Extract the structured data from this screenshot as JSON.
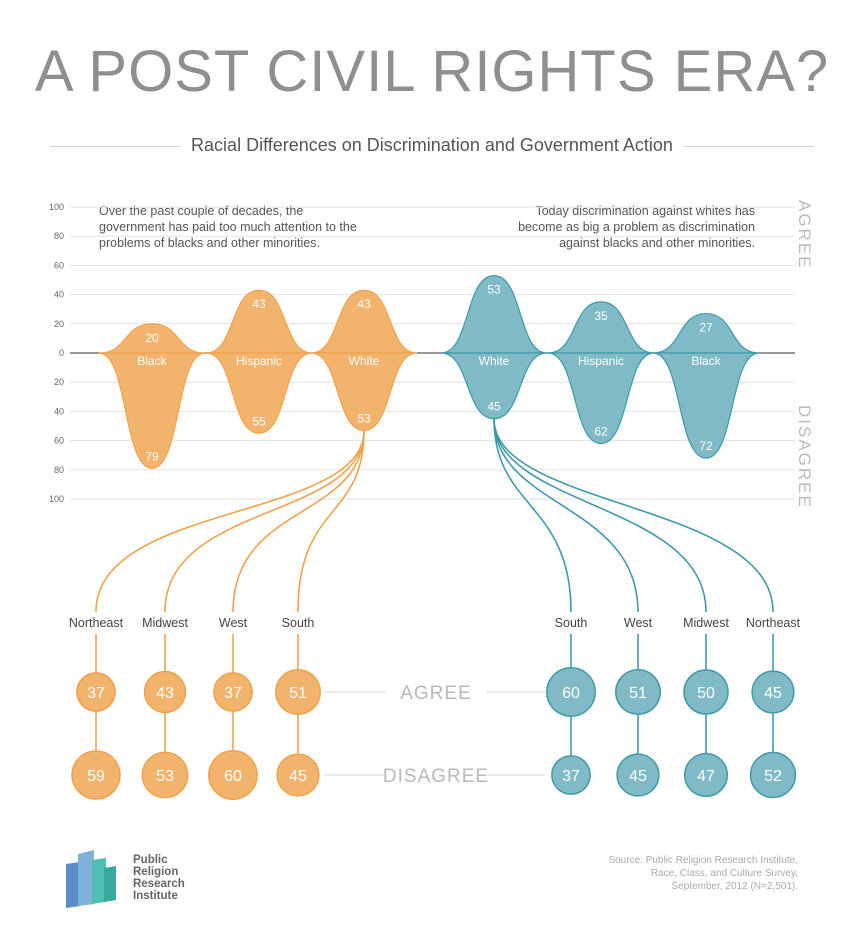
{
  "title": "A POST CIVIL RIGHTS ERA?",
  "subtitle": "Racial Differences on Discrimination and Government Action",
  "questions": {
    "left": "Over the past couple of decades, the government has paid too much attention to the problems of blacks and other minorities.",
    "right": "Today discrimination against whites has become as big a problem as discrimination against blacks and other minorities."
  },
  "side_labels": {
    "agree": "AGREE",
    "disagree": "DISAGREE"
  },
  "colors": {
    "orange": "#f0a34c",
    "orange_fill": "#f2b36d",
    "teal": "#3f9aaa",
    "teal_fill": "#7fbac6",
    "grid": "#e2e2e2",
    "text_gray": "#bbbbbb"
  },
  "chart_data": {
    "type": "area",
    "yticks": [
      100,
      80,
      60,
      40,
      20,
      0,
      20,
      40,
      60,
      80,
      100
    ],
    "ylim": [
      -100,
      100
    ],
    "series": [
      {
        "question": "left",
        "color": "orange",
        "groups": [
          {
            "name": "Black",
            "agree": 20,
            "disagree": 79
          },
          {
            "name": "Hispanic",
            "agree": 43,
            "disagree": 55
          },
          {
            "name": "White",
            "agree": 43,
            "disagree": 53
          }
        ],
        "breakdown_of": "White",
        "regions": [
          {
            "name": "Northeast",
            "agree": 37,
            "disagree": 59
          },
          {
            "name": "Midwest",
            "agree": 43,
            "disagree": 53
          },
          {
            "name": "West",
            "agree": 37,
            "disagree": 60
          },
          {
            "name": "South",
            "agree": 51,
            "disagree": 45
          }
        ]
      },
      {
        "question": "right",
        "color": "teal",
        "groups": [
          {
            "name": "White",
            "agree": 53,
            "disagree": 45
          },
          {
            "name": "Hispanic",
            "agree": 35,
            "disagree": 62
          },
          {
            "name": "Black",
            "agree": 27,
            "disagree": 72
          }
        ],
        "breakdown_of": "White",
        "regions": [
          {
            "name": "South",
            "agree": 60,
            "disagree": 37
          },
          {
            "name": "West",
            "agree": 51,
            "disagree": 45
          },
          {
            "name": "Midwest",
            "agree": 50,
            "disagree": 47
          },
          {
            "name": "Northeast",
            "agree": 45,
            "disagree": 52
          }
        ]
      }
    ]
  },
  "legend_rows": {
    "agree": "AGREE",
    "disagree": "DISAGREE"
  },
  "logo": {
    "line1": "Public",
    "line2": "Religion",
    "line3": "Research",
    "line4": "Institute"
  },
  "source": {
    "line1": "Source: Public Religion Research Institute,",
    "line2": "Race, Class, and Culture Survey,",
    "line3": "September, 2012 (N=2,501)."
  }
}
